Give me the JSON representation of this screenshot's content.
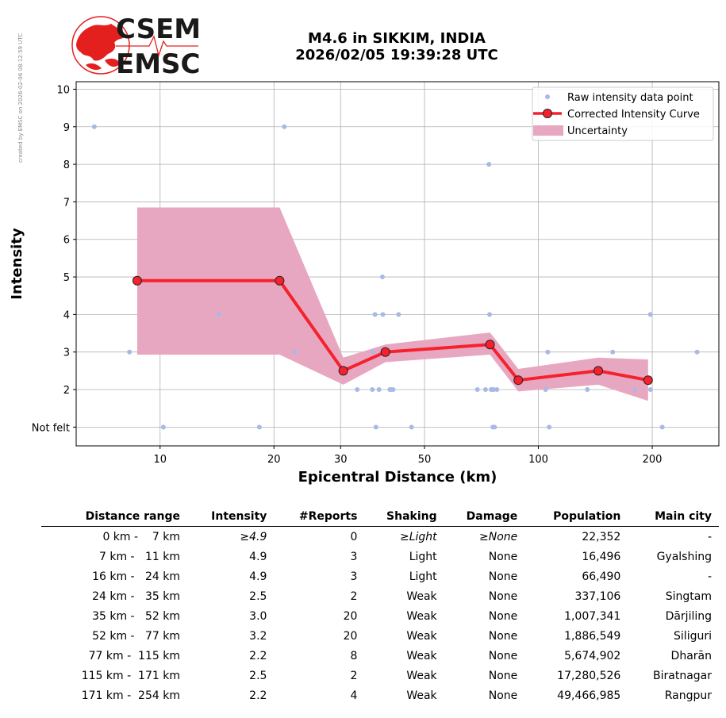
{
  "credit": "created by EMSC on 2026-02-06 08:12:59 UTC",
  "logo": {
    "line1": "CSEM",
    "line2": "EMSC",
    "colors": {
      "red": "#e4201f",
      "dark": "#1a1a1a"
    }
  },
  "title": {
    "line1": "M4.6 in SIKKIM, INDIA",
    "line2": "2026/02/05 19:39:28 UTC"
  },
  "chart_data": {
    "type": "scatter",
    "xlabel": "Epicentral Distance (km)",
    "ylabel": "Intensity",
    "x_scale": "log",
    "xlim": [
      6,
      300
    ],
    "ylim": [
      0.5,
      10.2
    ],
    "x_ticks": [
      {
        "value": 10,
        "label": "10"
      },
      {
        "value": 20,
        "label": "20"
      },
      {
        "value": 30,
        "label": "30"
      },
      {
        "value": 50,
        "label": "50"
      },
      {
        "value": 100,
        "label": "100"
      },
      {
        "value": 200,
        "label": "200"
      }
    ],
    "y_ticks": [
      {
        "value": 1,
        "label": "Not felt"
      },
      {
        "value": 2,
        "label": "2"
      },
      {
        "value": 3,
        "label": "3"
      },
      {
        "value": 4,
        "label": "4"
      },
      {
        "value": 5,
        "label": "5"
      },
      {
        "value": 6,
        "label": "6"
      },
      {
        "value": 7,
        "label": "7"
      },
      {
        "value": 8,
        "label": "8"
      },
      {
        "value": 9,
        "label": "9"
      },
      {
        "value": 10,
        "label": "10"
      }
    ],
    "grid": true,
    "legend_position": "top-right",
    "legend": {
      "raw": "Raw intensity data point",
      "curve": "Corrected Intensity Curve",
      "band": "Uncertainty"
    },
    "colors": {
      "raw": "#a9b9e6",
      "curve": "#f5222d",
      "band": "#e8a7c1",
      "grid": "#b0b0b0"
    },
    "raw_points": [
      [
        6.7,
        9
      ],
      [
        8.3,
        3
      ],
      [
        10.2,
        1
      ],
      [
        14.3,
        4
      ],
      [
        18.3,
        1
      ],
      [
        21.3,
        9
      ],
      [
        22.7,
        3
      ],
      [
        33.2,
        2
      ],
      [
        36.4,
        2
      ],
      [
        36.5,
        3
      ],
      [
        37.0,
        4
      ],
      [
        37.2,
        1
      ],
      [
        37.9,
        2
      ],
      [
        38.5,
        3
      ],
      [
        38.7,
        5
      ],
      [
        38.8,
        4
      ],
      [
        40.5,
        2
      ],
      [
        40.8,
        2
      ],
      [
        41.3,
        2
      ],
      [
        42.7,
        4
      ],
      [
        46.2,
        1
      ],
      [
        69.0,
        2
      ],
      [
        72.5,
        2
      ],
      [
        74.0,
        8
      ],
      [
        74.3,
        4
      ],
      [
        75.0,
        2
      ],
      [
        75.3,
        2
      ],
      [
        75.8,
        1
      ],
      [
        76.2,
        2
      ],
      [
        76.6,
        1
      ],
      [
        77.7,
        2
      ],
      [
        104.5,
        2
      ],
      [
        105.9,
        3
      ],
      [
        106.8,
        1
      ],
      [
        134.7,
        2
      ],
      [
        157.2,
        3
      ],
      [
        180.0,
        2
      ],
      [
        197.7,
        4
      ],
      [
        197.9,
        2
      ],
      [
        212.6,
        1
      ],
      [
        262.8,
        3
      ]
    ],
    "curve": [
      [
        8.7,
        4.9
      ],
      [
        20.7,
        4.9
      ],
      [
        30.5,
        2.5
      ],
      [
        39.4,
        3.0
      ],
      [
        74.5,
        3.2
      ],
      [
        88.5,
        2.25
      ],
      [
        144.0,
        2.5
      ],
      [
        195.0,
        2.25
      ]
    ],
    "band_upper": [
      [
        8.7,
        6.85
      ],
      [
        20.7,
        6.85
      ],
      [
        30.5,
        2.85
      ],
      [
        39.4,
        3.2
      ],
      [
        74.5,
        3.52
      ],
      [
        88.5,
        2.55
      ],
      [
        144.0,
        2.85
      ],
      [
        195.0,
        2.8
      ]
    ],
    "band_lower": [
      [
        8.7,
        2.93
      ],
      [
        20.7,
        2.93
      ],
      [
        30.5,
        2.13
      ],
      [
        39.4,
        2.73
      ],
      [
        74.5,
        2.93
      ],
      [
        88.5,
        1.95
      ],
      [
        144.0,
        2.13
      ],
      [
        195.0,
        1.7
      ]
    ]
  },
  "table": {
    "headers": [
      "Distance range",
      "Intensity",
      "#Reports",
      "Shaking",
      "Damage",
      "Population",
      "Main city"
    ],
    "rows": [
      [
        "0 km -    7 km",
        "≥4.9",
        "0",
        "≥Light",
        "≥None",
        "22,352",
        "-"
      ],
      [
        "7 km -   11 km",
        "4.9",
        "3",
        "Light",
        "None",
        "16,496",
        "Gyalshing"
      ],
      [
        "16 km -   24 km",
        "4.9",
        "3",
        "Light",
        "None",
        "66,490",
        "-"
      ],
      [
        "24 km -   35 km",
        "2.5",
        "2",
        "Weak",
        "None",
        "337,106",
        "Singtam"
      ],
      [
        "35 km -   52 km",
        "3.0",
        "20",
        "Weak",
        "None",
        "1,007,341",
        "Dārjiling"
      ],
      [
        "52 km -   77 km",
        "3.2",
        "20",
        "Weak",
        "None",
        "1,886,549",
        "Siliguri"
      ],
      [
        "77 km -  115 km",
        "2.2",
        "8",
        "Weak",
        "None",
        "5,674,902",
        "Dharān"
      ],
      [
        "115 km -  171 km",
        "2.5",
        "2",
        "Weak",
        "None",
        "17,280,526",
        "Biratnagar"
      ],
      [
        "171 km -  254 km",
        "2.2",
        "4",
        "Weak",
        "None",
        "49,466,985",
        "Rangpur"
      ]
    ],
    "italic_first_row_cols": [
      1,
      3,
      4
    ]
  }
}
